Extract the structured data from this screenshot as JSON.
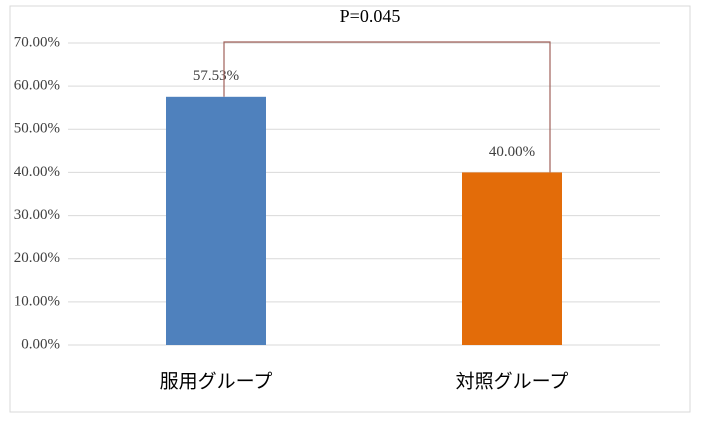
{
  "chart_data": {
    "type": "bar",
    "annotation": "P=0.045",
    "categories": [
      "服用グループ",
      "対照グループ"
    ],
    "values": [
      57.53,
      40.0
    ],
    "value_labels": [
      "57.53%",
      "40.00%"
    ],
    "colors": [
      "#4f81bd",
      "#e36c09"
    ],
    "ylim": [
      0,
      70
    ],
    "yticks": [
      {
        "value": 0,
        "label": "0.00%"
      },
      {
        "value": 10,
        "label": "10.00%"
      },
      {
        "value": 20,
        "label": "20.00%"
      },
      {
        "value": 30,
        "label": "30.00%"
      },
      {
        "value": 40,
        "label": "40.00%"
      },
      {
        "value": 50,
        "label": "50.00%"
      },
      {
        "value": 60,
        "label": "60.00%"
      },
      {
        "value": 70,
        "label": "70.00%"
      }
    ],
    "grid": true
  }
}
